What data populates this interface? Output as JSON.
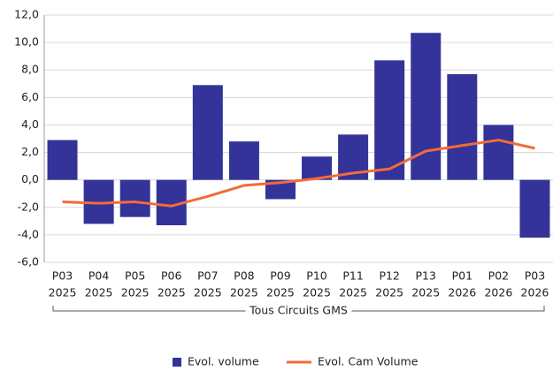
{
  "chart_data": {
    "type": "bar_line",
    "group_label": "Tous Circuits GMS",
    "categories": [
      [
        "P03",
        "2025"
      ],
      [
        "P04",
        "2025"
      ],
      [
        "P05",
        "2025"
      ],
      [
        "P06",
        "2025"
      ],
      [
        "P07",
        "2025"
      ],
      [
        "P08",
        "2025"
      ],
      [
        "P09",
        "2025"
      ],
      [
        "P10",
        "2025"
      ],
      [
        "P11",
        "2025"
      ],
      [
        "P12",
        "2025"
      ],
      [
        "P13",
        "2025"
      ],
      [
        "P01",
        "2026"
      ],
      [
        "P02",
        "2026"
      ],
      [
        "P03",
        "2026"
      ]
    ],
    "series": [
      {
        "name": "Evol. volume",
        "type": "bar",
        "color": "#333399",
        "values": [
          2.9,
          -3.2,
          -2.7,
          -3.3,
          6.9,
          2.8,
          -1.4,
          1.7,
          3.3,
          8.7,
          10.7,
          7.7,
          4.0,
          -4.2
        ]
      },
      {
        "name": "Evol. Cam Volume",
        "type": "line",
        "color": "#f26b38",
        "values": [
          -1.6,
          -1.7,
          -1.6,
          -1.9,
          -1.2,
          -0.4,
          -0.2,
          0.1,
          0.5,
          0.8,
          2.1,
          2.5,
          2.9,
          2.3
        ]
      }
    ],
    "ylim": [
      -6,
      12
    ],
    "yticks": [
      {
        "value": -6,
        "label": "-6,0"
      },
      {
        "value": -4,
        "label": "-4,0"
      },
      {
        "value": -2,
        "label": "-2,0"
      },
      {
        "value": 0,
        "label": "0,0"
      },
      {
        "value": 2,
        "label": "2,0"
      },
      {
        "value": 4,
        "label": "4,0"
      },
      {
        "value": 6,
        "label": "6,0"
      },
      {
        "value": 8,
        "label": "8,0"
      },
      {
        "value": 10,
        "label": "10,0"
      },
      {
        "value": 12,
        "label": "12,0"
      }
    ],
    "grid": true,
    "legend": "bottom"
  }
}
